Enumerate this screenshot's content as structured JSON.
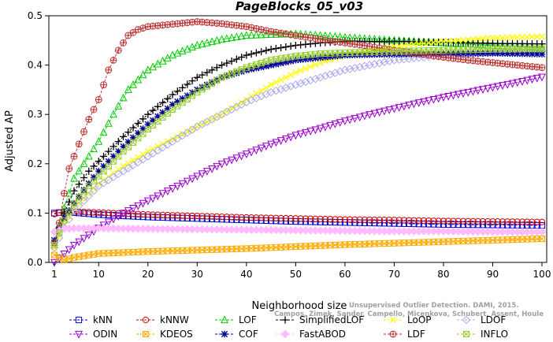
{
  "chart_data": {
    "type": "line",
    "title": "PageBlocks_05_v03",
    "xlabel": "Neighborhood size",
    "ylabel": "Adjusted AP",
    "xlim": [
      1,
      100
    ],
    "ylim": [
      0,
      0.5
    ],
    "xticks": [
      1,
      10,
      20,
      30,
      40,
      50,
      60,
      70,
      80,
      90,
      100
    ],
    "yticks": [
      0.0,
      0.1,
      0.2,
      0.3,
      0.4,
      0.5
    ],
    "grid": false,
    "legend_position": "bottom",
    "note_lines": [
      "Unsupervised Outlier Detection. DAMI, 2015.",
      "Campos, Zimek, Sander, Campello, Micenkova, Schubert, Assent, Houle"
    ],
    "series": [
      {
        "name": "kNN",
        "color": "#0000cc",
        "marker": "square",
        "points": [
          [
            1,
            0.1
          ],
          [
            3,
            0.102
          ],
          [
            5,
            0.101
          ],
          [
            10,
            0.097
          ],
          [
            20,
            0.092
          ],
          [
            30,
            0.089
          ],
          [
            40,
            0.086
          ],
          [
            50,
            0.083
          ],
          [
            60,
            0.081
          ],
          [
            70,
            0.079
          ],
          [
            80,
            0.077
          ],
          [
            90,
            0.076
          ],
          [
            100,
            0.075
          ]
        ]
      },
      {
        "name": "kNNW",
        "color": "#cc0000",
        "marker": "circle",
        "points": [
          [
            1,
            0.098
          ],
          [
            3,
            0.103
          ],
          [
            5,
            0.103
          ],
          [
            10,
            0.101
          ],
          [
            20,
            0.097
          ],
          [
            30,
            0.094
          ],
          [
            40,
            0.091
          ],
          [
            50,
            0.089
          ],
          [
            60,
            0.087
          ],
          [
            70,
            0.086
          ],
          [
            80,
            0.084
          ],
          [
            90,
            0.083
          ],
          [
            100,
            0.082
          ]
        ]
      },
      {
        "name": "LOF",
        "color": "#00cc00",
        "marker": "triangle-up",
        "points": [
          [
            1,
            0.04
          ],
          [
            3,
            0.11
          ],
          [
            5,
            0.17
          ],
          [
            8,
            0.215
          ],
          [
            10,
            0.245
          ],
          [
            13,
            0.3
          ],
          [
            16,
            0.35
          ],
          [
            20,
            0.39
          ],
          [
            25,
            0.42
          ],
          [
            30,
            0.44
          ],
          [
            35,
            0.452
          ],
          [
            40,
            0.46
          ],
          [
            45,
            0.462
          ],
          [
            50,
            0.463
          ],
          [
            55,
            0.46
          ],
          [
            60,
            0.456
          ],
          [
            70,
            0.45
          ],
          [
            80,
            0.445
          ],
          [
            90,
            0.44
          ],
          [
            100,
            0.435
          ]
        ]
      },
      {
        "name": "SimplifiedLOF",
        "color": "#000000",
        "marker": "plus",
        "points": [
          [
            1,
            0.04
          ],
          [
            3,
            0.1
          ],
          [
            5,
            0.145
          ],
          [
            8,
            0.185
          ],
          [
            10,
            0.205
          ],
          [
            15,
            0.255
          ],
          [
            20,
            0.3
          ],
          [
            25,
            0.34
          ],
          [
            30,
            0.375
          ],
          [
            35,
            0.4
          ],
          [
            40,
            0.42
          ],
          [
            45,
            0.432
          ],
          [
            50,
            0.44
          ],
          [
            55,
            0.445
          ],
          [
            60,
            0.448
          ],
          [
            70,
            0.448
          ],
          [
            80,
            0.446
          ],
          [
            90,
            0.444
          ],
          [
            100,
            0.443
          ]
        ]
      },
      {
        "name": "LoOP",
        "color": "#ffff00",
        "marker": "x",
        "points": [
          [
            1,
            0.03
          ],
          [
            3,
            0.075
          ],
          [
            5,
            0.11
          ],
          [
            8,
            0.14
          ],
          [
            10,
            0.16
          ],
          [
            15,
            0.195
          ],
          [
            20,
            0.225
          ],
          [
            25,
            0.25
          ],
          [
            30,
            0.275
          ],
          [
            35,
            0.3
          ],
          [
            40,
            0.33
          ],
          [
            45,
            0.36
          ],
          [
            50,
            0.385
          ],
          [
            55,
            0.405
          ],
          [
            60,
            0.42
          ],
          [
            70,
            0.438
          ],
          [
            80,
            0.448
          ],
          [
            90,
            0.455
          ],
          [
            100,
            0.458
          ]
        ]
      },
      {
        "name": "LDOF",
        "color": "#aaaaee",
        "marker": "diamond",
        "points": [
          [
            1,
            0.03
          ],
          [
            3,
            0.07
          ],
          [
            5,
            0.105
          ],
          [
            8,
            0.135
          ],
          [
            10,
            0.155
          ],
          [
            15,
            0.185
          ],
          [
            20,
            0.215
          ],
          [
            25,
            0.245
          ],
          [
            30,
            0.275
          ],
          [
            35,
            0.3
          ],
          [
            40,
            0.325
          ],
          [
            45,
            0.345
          ],
          [
            50,
            0.36
          ],
          [
            55,
            0.375
          ],
          [
            60,
            0.39
          ],
          [
            70,
            0.41
          ],
          [
            80,
            0.42
          ],
          [
            90,
            0.425
          ],
          [
            100,
            0.428
          ]
        ]
      },
      {
        "name": "ODIN",
        "color": "#9900cc",
        "marker": "triangle-down",
        "points": [
          [
            1,
            0.0
          ],
          [
            5,
            0.035
          ],
          [
            10,
            0.07
          ],
          [
            15,
            0.1
          ],
          [
            20,
            0.125
          ],
          [
            25,
            0.15
          ],
          [
            30,
            0.175
          ],
          [
            35,
            0.2
          ],
          [
            40,
            0.22
          ],
          [
            45,
            0.24
          ],
          [
            50,
            0.258
          ],
          [
            55,
            0.272
          ],
          [
            60,
            0.287
          ],
          [
            65,
            0.3
          ],
          [
            70,
            0.312
          ],
          [
            75,
            0.324
          ],
          [
            80,
            0.335
          ],
          [
            85,
            0.345
          ],
          [
            90,
            0.355
          ],
          [
            95,
            0.365
          ],
          [
            100,
            0.376
          ]
        ]
      },
      {
        "name": "KDEOS",
        "color": "#ffaa00",
        "marker": "square-x",
        "points": [
          [
            1,
            0.015
          ],
          [
            3,
            0.005
          ],
          [
            5,
            0.01
          ],
          [
            8,
            0.015
          ],
          [
            10,
            0.018
          ],
          [
            20,
            0.022
          ],
          [
            30,
            0.025
          ],
          [
            40,
            0.028
          ],
          [
            50,
            0.032
          ],
          [
            60,
            0.036
          ],
          [
            70,
            0.039
          ],
          [
            80,
            0.042
          ],
          [
            90,
            0.045
          ],
          [
            100,
            0.048
          ]
        ]
      },
      {
        "name": "COF",
        "color": "#000099",
        "marker": "asterisk",
        "points": [
          [
            1,
            0.045
          ],
          [
            3,
            0.09
          ],
          [
            5,
            0.12
          ],
          [
            8,
            0.16
          ],
          [
            10,
            0.185
          ],
          [
            15,
            0.235
          ],
          [
            20,
            0.28
          ],
          [
            25,
            0.32
          ],
          [
            30,
            0.35
          ],
          [
            35,
            0.375
          ],
          [
            40,
            0.39
          ],
          [
            45,
            0.4
          ],
          [
            50,
            0.41
          ],
          [
            55,
            0.415
          ],
          [
            60,
            0.42
          ],
          [
            70,
            0.422
          ],
          [
            80,
            0.423
          ],
          [
            90,
            0.424
          ],
          [
            100,
            0.422
          ]
        ]
      },
      {
        "name": "FastABOD",
        "color": "#ffbbff",
        "marker": "diamond-filled",
        "points": [
          [
            1,
            0.062
          ],
          [
            3,
            0.068
          ],
          [
            5,
            0.069
          ],
          [
            10,
            0.069
          ],
          [
            20,
            0.068
          ],
          [
            30,
            0.067
          ],
          [
            40,
            0.066
          ],
          [
            50,
            0.065
          ],
          [
            60,
            0.064
          ],
          [
            70,
            0.063
          ],
          [
            80,
            0.063
          ],
          [
            90,
            0.062
          ],
          [
            100,
            0.062
          ]
        ]
      },
      {
        "name": "LDF",
        "color": "#bb3333",
        "marker": "circle-plus",
        "points": [
          [
            1,
            0.04
          ],
          [
            2,
            0.08
          ],
          [
            3,
            0.14
          ],
          [
            4,
            0.19
          ],
          [
            5,
            0.215
          ],
          [
            6,
            0.24
          ],
          [
            8,
            0.29
          ],
          [
            10,
            0.33
          ],
          [
            12,
            0.39
          ],
          [
            14,
            0.43
          ],
          [
            16,
            0.46
          ],
          [
            18,
            0.472
          ],
          [
            20,
            0.478
          ],
          [
            25,
            0.483
          ],
          [
            30,
            0.488
          ],
          [
            35,
            0.484
          ],
          [
            40,
            0.478
          ],
          [
            45,
            0.468
          ],
          [
            50,
            0.46
          ],
          [
            55,
            0.452
          ],
          [
            60,
            0.445
          ],
          [
            65,
            0.438
          ],
          [
            70,
            0.43
          ],
          [
            75,
            0.423
          ],
          [
            80,
            0.416
          ],
          [
            85,
            0.41
          ],
          [
            90,
            0.405
          ],
          [
            95,
            0.4
          ],
          [
            100,
            0.395
          ]
        ]
      },
      {
        "name": "INFLO",
        "color": "#99cc33",
        "marker": "square-x",
        "points": [
          [
            1,
            0.035
          ],
          [
            3,
            0.085
          ],
          [
            5,
            0.12
          ],
          [
            8,
            0.155
          ],
          [
            10,
            0.175
          ],
          [
            15,
            0.225
          ],
          [
            20,
            0.27
          ],
          [
            25,
            0.31
          ],
          [
            30,
            0.345
          ],
          [
            35,
            0.375
          ],
          [
            40,
            0.395
          ],
          [
            45,
            0.41
          ],
          [
            50,
            0.418
          ],
          [
            55,
            0.423
          ],
          [
            60,
            0.425
          ],
          [
            70,
            0.428
          ],
          [
            80,
            0.43
          ],
          [
            90,
            0.432
          ],
          [
            100,
            0.433
          ]
        ]
      }
    ]
  }
}
